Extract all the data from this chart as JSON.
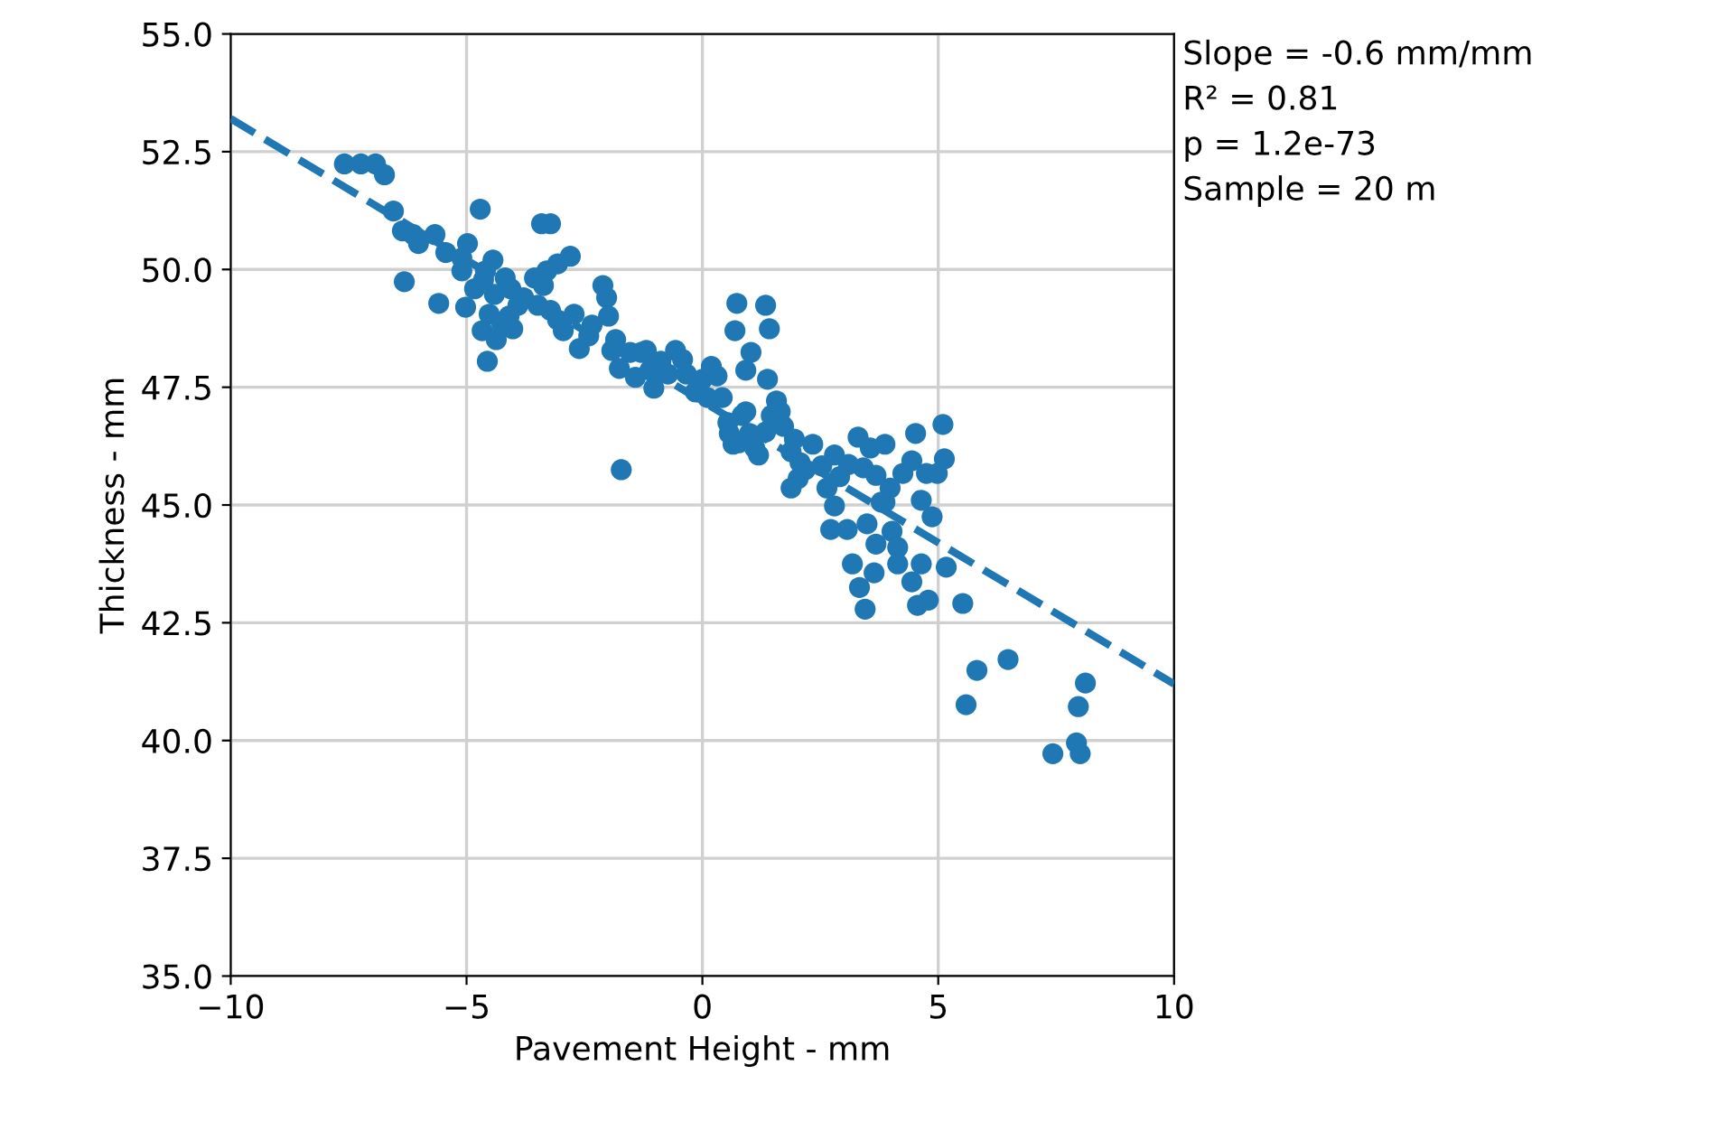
{
  "chart_data": {
    "type": "scatter",
    "xlabel": "Pavement Height - mm",
    "ylabel": "Thickness - mm",
    "xlim": [
      -10,
      10
    ],
    "ylim": [
      35,
      55
    ],
    "xticks": [
      {
        "value": -10,
        "label": "−10"
      },
      {
        "value": -5,
        "label": "−5"
      },
      0,
      5,
      10
    ],
    "yticks": [
      {
        "value": 35,
        "label": "35.0"
      },
      {
        "value": 37.5,
        "label": "37.5"
      },
      {
        "value": 40,
        "label": "40.0"
      },
      {
        "value": 42.5,
        "label": "42.5"
      },
      {
        "value": 45,
        "label": "45.0"
      },
      {
        "value": 47.5,
        "label": "47.5"
      },
      {
        "value": 50,
        "label": "50.0"
      },
      {
        "value": 52.5,
        "label": "52.5"
      },
      {
        "value": 55,
        "label": "55.0"
      }
    ],
    "grid": true,
    "annotations": [
      "Slope = -0.6 mm/mm",
      "R² = 0.81",
      "p = 1.2e-73",
      "Sample = 20 m"
    ],
    "series": [
      {
        "marker": "circle",
        "color": "#1f77b4",
        "x": [
          -7.59,
          -7.24,
          -6.93,
          -6.74,
          -6.55,
          -6.36,
          -6.13,
          -6.02,
          -5.67,
          -6.32,
          -5.44,
          -5.1,
          -4.98,
          -5.59,
          -5.1,
          -4.71,
          -5.02,
          -4.83,
          -4.64,
          -4.67,
          -4.6,
          -4.44,
          -4.52,
          -4.41,
          -4.18,
          -4.06,
          -4.56,
          -4.37,
          -4.25,
          -4.1,
          -4.02,
          -3.91,
          -3.79,
          -3.41,
          -3.22,
          -3.3,
          -3.07,
          -2.8,
          -3.56,
          -3.37,
          -3.49,
          -3.22,
          -3.07,
          -2.95,
          -2.72,
          -2.61,
          -2.41,
          -2.34,
          -2.11,
          -2.03,
          -1.99,
          -1.92,
          -1.84,
          -1.76,
          -1.72,
          -1.53,
          -1.42,
          -1.3,
          -1.19,
          -1.11,
          -1.03,
          -0.88,
          -0.73,
          -0.57,
          -0.42,
          -0.34,
          -0.15,
          0,
          0.11,
          0.19,
          0.31,
          0.42,
          0.54,
          0.57,
          0.65,
          0.77,
          0.84,
          0.92,
          1.0,
          1.11,
          1.19,
          1.34,
          1.46,
          0.73,
          0.69,
          1.03,
          0.92,
          1.34,
          1.38,
          1.57,
          1.65,
          1.72,
          1.88,
          1.95,
          2.03,
          2.07,
          2.18,
          2.34,
          2.53,
          2.64,
          2.8,
          2.91,
          3.1,
          3.3,
          3.41,
          3.56,
          3.68,
          3.87,
          3.98,
          3.79,
          3.07,
          3.18,
          3.33,
          3.49,
          3.68,
          3.87,
          4.02,
          4.14,
          4.25,
          4.44,
          4.64,
          4.75,
          4.52,
          4.87,
          4.98,
          4.44,
          4.56,
          4.14,
          4.64,
          4.79,
          5.17,
          5.1,
          5.13,
          5.52,
          5.82,
          5.59,
          6.48,
          7.43,
          8.01,
          7.93,
          7.97,
          8.12,
          3.45,
          3.64,
          2.72,
          2.8,
          1.42,
          1.88
        ],
        "values": [
          52.24,
          52.24,
          52.24,
          52.01,
          51.24,
          50.82,
          50.74,
          50.55,
          50.74,
          49.74,
          50.36,
          50.24,
          50.55,
          49.28,
          49.97,
          51.28,
          49.2,
          49.59,
          49.78,
          48.7,
          49.97,
          50.2,
          49.05,
          49.47,
          49.82,
          49.59,
          48.05,
          48.51,
          48.82,
          49.01,
          48.74,
          49.24,
          49.4,
          50.97,
          50.97,
          49.97,
          50.12,
          50.28,
          49.82,
          49.66,
          49.24,
          49.13,
          48.93,
          48.7,
          49.05,
          48.32,
          48.59,
          48.82,
          49.66,
          49.4,
          49.01,
          48.28,
          48.51,
          47.9,
          45.75,
          48.24,
          47.71,
          48.24,
          48.28,
          47.86,
          47.48,
          48.05,
          47.78,
          48.28,
          48.09,
          47.78,
          47.4,
          47.67,
          47.28,
          47.94,
          47.74,
          47.28,
          46.75,
          46.52,
          46.29,
          46.32,
          46.9,
          46.98,
          46.52,
          46.21,
          46.06,
          46.55,
          46.9,
          49.28,
          48.7,
          48.24,
          47.86,
          49.24,
          47.67,
          47.21,
          46.98,
          46.67,
          46.13,
          46.4,
          45.56,
          45.9,
          45.75,
          46.29,
          45.83,
          45.36,
          46.06,
          45.6,
          45.86,
          46.44,
          45.79,
          46.21,
          45.63,
          46.29,
          45.36,
          45.06,
          44.48,
          43.75,
          43.25,
          44.6,
          44.17,
          45.06,
          44.44,
          44.1,
          45.67,
          45.94,
          45.1,
          45.67,
          46.52,
          44.75,
          45.67,
          43.37,
          42.87,
          43.75,
          43.75,
          42.98,
          43.68,
          46.71,
          45.98,
          42.91,
          41.49,
          40.76,
          41.72,
          39.72,
          39.72,
          39.95,
          40.72,
          41.22,
          42.79,
          43.56,
          44.48,
          44.98,
          48.74,
          45.36
        ]
      },
      {
        "type": "line",
        "color": "#1f77b4",
        "line_style": "dashed",
        "x": [
          -10,
          10
        ],
        "values": [
          53.2,
          41.2
        ]
      }
    ]
  }
}
